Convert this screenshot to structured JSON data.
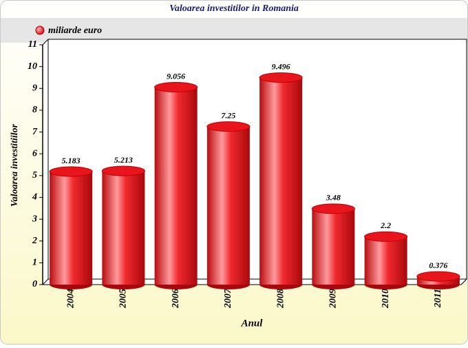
{
  "chart_data": {
    "type": "bar",
    "title": "Valoarea investitilor in Romania",
    "x_label": "Anul",
    "y_label": "Valoarea investitiilor",
    "categories": [
      "2004",
      "2005",
      "2006",
      "2007",
      "2008",
      "2009",
      "2010",
      "2011"
    ],
    "series": [
      {
        "name": "miliarde euro",
        "color": "#e8161c",
        "values": [
          5.183,
          5.213,
          9.056,
          7.25,
          9.496,
          3.48,
          2.2,
          0.376
        ]
      }
    ],
    "ylim": [
      0,
      11
    ],
    "yticks": [
      0,
      1,
      2,
      3,
      4,
      5,
      6,
      7,
      8,
      9,
      10,
      11
    ],
    "grid": false,
    "legend_position": "top-left"
  }
}
